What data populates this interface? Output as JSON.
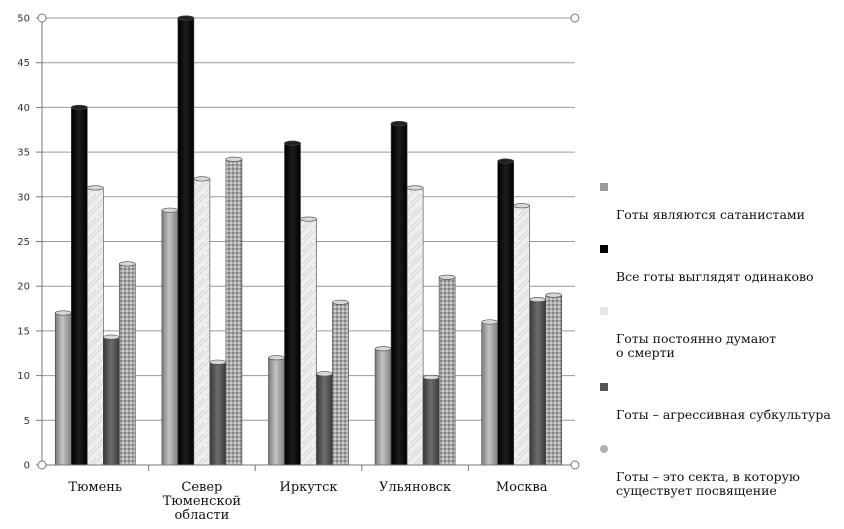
{
  "chart_data": {
    "type": "bar",
    "title": "",
    "xlabel": "",
    "ylabel": "",
    "ylim": [
      0,
      50
    ],
    "yticks": [
      0,
      5,
      10,
      15,
      20,
      25,
      30,
      35,
      40,
      45,
      50
    ],
    "categories": [
      "Тюмень",
      "Север\nТюменской\nобласти",
      "Иркутск",
      "Ульяновск",
      "Москва"
    ],
    "series": [
      {
        "name": "Готы являются сатанистами",
        "color": "#9a9a9a",
        "values": [
          17,
          28.5,
          12,
          13,
          16
        ]
      },
      {
        "name": "Все готы выглядят одинаково",
        "color": "#050505",
        "values": [
          40,
          50,
          36,
          38.2,
          34
        ]
      },
      {
        "name": "Готы постоянно думают\nо смерти",
        "color": "#e6e6e6",
        "values": [
          31,
          32,
          27.5,
          31,
          29
        ]
      },
      {
        "name": "Готы – агрессивная субкультура",
        "color": "#555555",
        "values": [
          14.3,
          11.5,
          10.2,
          9.8,
          18.5
        ]
      },
      {
        "name": "Готы – это секта, в которую\nсуществует посвящение",
        "color": "#b0b0b0",
        "values": [
          22.5,
          34.2,
          18.2,
          21,
          19
        ]
      }
    ],
    "grid": true,
    "legend_position": "right"
  }
}
